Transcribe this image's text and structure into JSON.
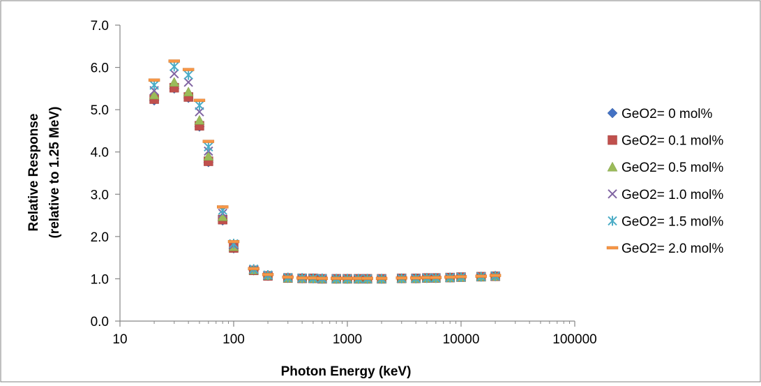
{
  "chart_data": {
    "type": "scatter",
    "x_scale": "log",
    "xlim": [
      10,
      100000
    ],
    "ylim": [
      0,
      7
    ],
    "xlabel": "Photon Energy (keV)",
    "ylabel_lines": [
      "Relative Response",
      "(relative to 1.25 MeV)"
    ],
    "x_ticks": [
      "10",
      "100",
      "1000",
      "10000",
      "100000"
    ],
    "x_tick_values": [
      10,
      100,
      1000,
      10000,
      100000
    ],
    "y_ticks": [
      "0.0",
      "1.0",
      "2.0",
      "3.0",
      "4.0",
      "5.0",
      "6.0",
      "7.0"
    ],
    "y_tick_values": [
      0,
      1,
      2,
      3,
      4,
      5,
      6,
      7
    ],
    "grid": false,
    "legend_position": "right",
    "x": [
      20,
      30,
      40,
      50,
      60,
      80,
      100,
      150,
      200,
      300,
      400,
      500,
      600,
      800,
      1000,
      1250,
      1500,
      2000,
      3000,
      4000,
      5000,
      6000,
      8000,
      10000,
      15000,
      20000
    ],
    "series": [
      {
        "name": "GeO2= 0 mol%",
        "marker": "diamond",
        "color": "#4472C4",
        "values": [
          5.22,
          5.5,
          5.28,
          4.6,
          3.76,
          2.38,
          1.72,
          1.2,
          1.07,
          1.02,
          1.01,
          1.01,
          1.0,
          1.0,
          1.0,
          1.0,
          1.0,
          1.0,
          1.01,
          1.01,
          1.02,
          1.02,
          1.03,
          1.04,
          1.05,
          1.06
        ]
      },
      {
        "name": "GeO2= 0.1 mol%",
        "marker": "square",
        "color": "#C0504D",
        "values": [
          5.25,
          5.52,
          5.3,
          4.62,
          3.78,
          2.4,
          1.73,
          1.2,
          1.07,
          1.02,
          1.01,
          1.01,
          1.0,
          1.0,
          1.0,
          1.0,
          1.0,
          1.0,
          1.01,
          1.01,
          1.02,
          1.02,
          1.03,
          1.04,
          1.05,
          1.06
        ]
      },
      {
        "name": "GeO2= 0.5 mol%",
        "marker": "triangle",
        "color": "#9BBB59",
        "values": [
          5.35,
          5.65,
          5.42,
          4.75,
          3.9,
          2.47,
          1.76,
          1.21,
          1.08,
          1.02,
          1.01,
          1.01,
          1.0,
          1.0,
          1.0,
          1.0,
          1.0,
          1.0,
          1.01,
          1.01,
          1.02,
          1.02,
          1.03,
          1.04,
          1.05,
          1.06
        ]
      },
      {
        "name": "GeO2= 1.0 mol%",
        "marker": "x",
        "color": "#8064A2",
        "values": [
          5.45,
          5.85,
          5.65,
          4.95,
          4.02,
          2.55,
          1.8,
          1.22,
          1.08,
          1.03,
          1.01,
          1.01,
          1.0,
          1.0,
          1.0,
          1.0,
          1.0,
          1.0,
          1.01,
          1.01,
          1.02,
          1.02,
          1.03,
          1.04,
          1.05,
          1.06
        ]
      },
      {
        "name": "GeO2= 1.5 mol%",
        "marker": "star",
        "color": "#4BACC6",
        "values": [
          5.58,
          6.02,
          5.82,
          5.1,
          4.12,
          2.62,
          1.83,
          1.23,
          1.09,
          1.03,
          1.02,
          1.01,
          1.01,
          1.0,
          1.0,
          1.0,
          1.0,
          1.0,
          1.01,
          1.01,
          1.02,
          1.02,
          1.03,
          1.04,
          1.05,
          1.07
        ]
      },
      {
        "name": "GeO2= 2.0 mol%",
        "marker": "dash",
        "color": "#F79646",
        "values": [
          5.7,
          6.15,
          5.95,
          5.22,
          4.25,
          2.7,
          1.88,
          1.24,
          1.1,
          1.04,
          1.02,
          1.02,
          1.01,
          1.01,
          1.01,
          1.01,
          1.01,
          1.01,
          1.02,
          1.02,
          1.03,
          1.03,
          1.04,
          1.05,
          1.06,
          1.08
        ]
      }
    ]
  }
}
